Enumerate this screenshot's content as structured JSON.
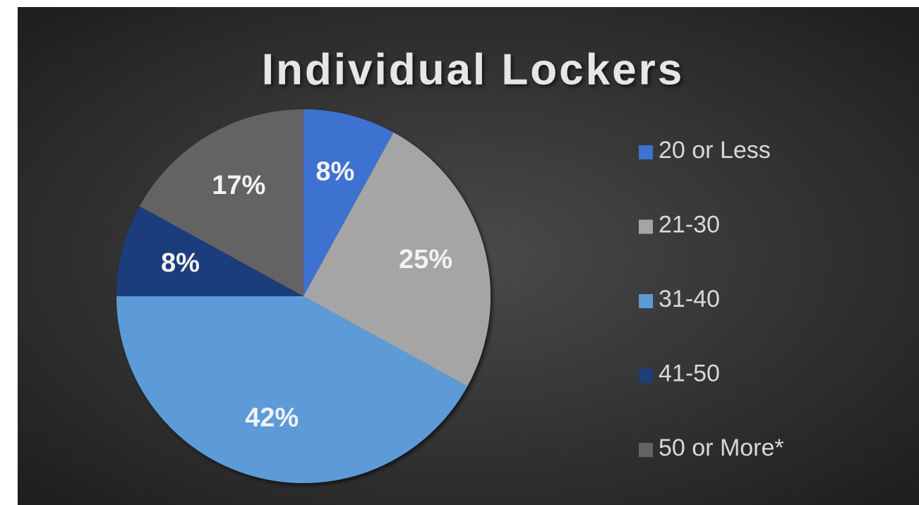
{
  "chart_data": {
    "type": "pie",
    "title": "Individual Lockers",
    "categories": [
      "20 or Less",
      "21-30",
      "31-40",
      "41-50",
      "50 or More*"
    ],
    "values": [
      8,
      25,
      42,
      8,
      17
    ],
    "value_labels": [
      "8%",
      "25%",
      "42%",
      "8%",
      "17%"
    ],
    "colors": [
      "#3d72d0",
      "#a5a5a5",
      "#5b9bd8",
      "#1e3d7b",
      "#636363"
    ],
    "legend": "right"
  }
}
